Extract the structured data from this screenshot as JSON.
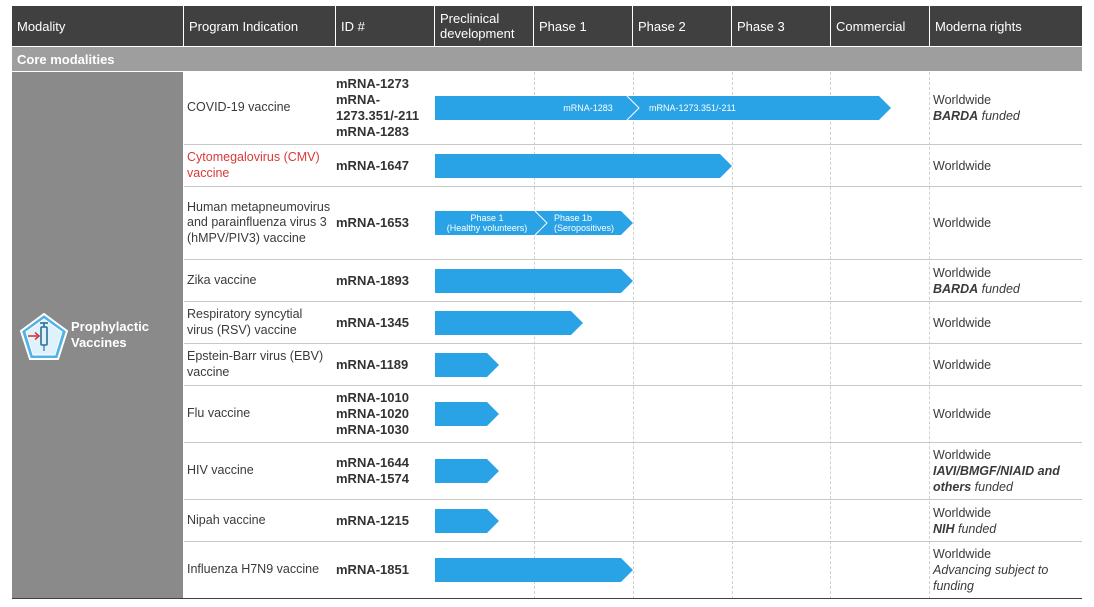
{
  "header": {
    "columns": [
      "Modality",
      "Program Indication",
      "ID #",
      "Preclinical development",
      "Phase 1",
      "Phase 2",
      "Phase 3",
      "Commercial",
      "Moderna rights"
    ],
    "preclinical_line1": "Preclinical",
    "preclinical_line2": "development"
  },
  "section": {
    "label": "Core modalities"
  },
  "modality": {
    "name_line1": "Prophylactic",
    "name_line2": "Vaccines",
    "icon": "vaccine-syringe-icon"
  },
  "colors": {
    "bar": "#2aa3e6",
    "header_bg": "#404040",
    "band_bg": "#9e9e9e",
    "modality_bg": "#8a8a8a",
    "highlight_text": "#d93a3a"
  },
  "programs": [
    {
      "indication": "COVID-19 vaccine",
      "ids": [
        "mRNA-1273",
        "mRNA-",
        "1273.351/-211",
        "mRNA-1283"
      ],
      "stage": "Commercial",
      "bar_segments": [
        "mRNA-1283",
        "mRNA-1273.351/-211"
      ],
      "rights": "Worldwide",
      "funder": "BARDA",
      "funded_suffix": " funded"
    },
    {
      "indication": "Cytomegalovirus (CMV) vaccine",
      "ids": [
        "mRNA-1647"
      ],
      "stage": "Phase 3",
      "rights": "Worldwide"
    },
    {
      "indication": "Human metapneumovirus and parainfluenza virus 3 (hMPV/PIV3) vaccine",
      "ids": [
        "mRNA-1653"
      ],
      "stage": "Phase 1b",
      "bar_segments": [
        "Phase 1",
        "(Healthy volunteers)",
        "Phase 1b",
        "(Seropositives)"
      ],
      "rights": "Worldwide"
    },
    {
      "indication": "Zika vaccine",
      "ids": [
        "mRNA-1893"
      ],
      "stage": "Phase 2",
      "rights": "Worldwide",
      "funder": "BARDA",
      "funded_suffix": " funded"
    },
    {
      "indication": "Respiratory syncytial virus (RSV) vaccine",
      "ids": [
        "mRNA-1345"
      ],
      "stage": "Phase 1",
      "rights": "Worldwide"
    },
    {
      "indication": "Epstein-Barr virus (EBV) vaccine",
      "ids": [
        "mRNA-1189"
      ],
      "stage": "Preclinical development",
      "rights": "Worldwide"
    },
    {
      "indication": "Flu vaccine",
      "ids": [
        "mRNA-1010",
        "mRNA-1020",
        "mRNA-1030"
      ],
      "stage": "Preclinical development",
      "rights": "Worldwide"
    },
    {
      "indication": "HIV vaccine",
      "ids": [
        "mRNA-1644",
        "mRNA-1574"
      ],
      "stage": "Preclinical development",
      "rights": "Worldwide",
      "funder": "IAVI/BMGF/NIAID and others",
      "funded_suffix": " funded"
    },
    {
      "indication": "Nipah vaccine",
      "ids": [
        "mRNA-1215"
      ],
      "stage": "Preclinical development",
      "rights": "Worldwide",
      "funder": "NIH",
      "funded_suffix": " funded"
    },
    {
      "indication": "Influenza H7N9 vaccine",
      "ids": [
        "mRNA-1851"
      ],
      "stage": "Phase 2",
      "rights": "Worldwide",
      "note": "Advancing subject to funding"
    }
  ]
}
